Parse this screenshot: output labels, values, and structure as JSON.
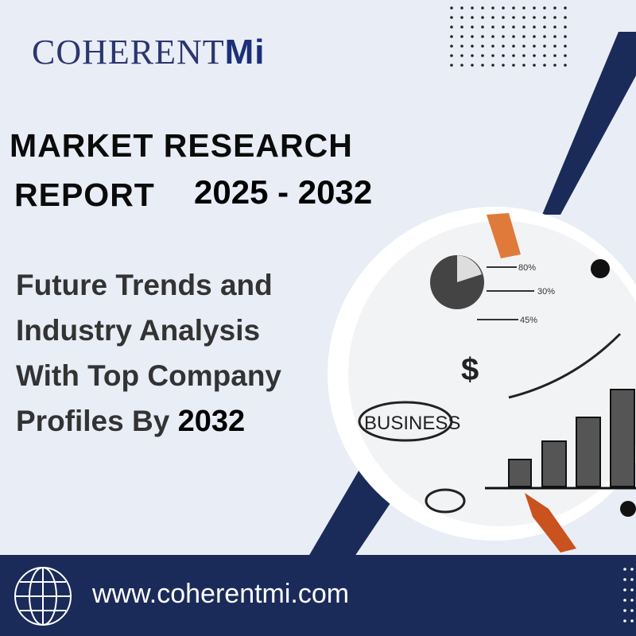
{
  "brand": {
    "name_prefix": "COHERENT",
    "name_suffix": "Mi",
    "url": "www.coherentmi.com"
  },
  "headline": {
    "line1": "MARKET RESEARCH",
    "line2": "REPORT",
    "years": "2025 - 2032"
  },
  "subtitle": {
    "line1": "Future Trends and",
    "line2": "Industry Analysis",
    "line3": "With Top Company",
    "line4_prefix": "Profiles By",
    "line4_year": "2032"
  },
  "illustration": {
    "word": "BUSINESS",
    "labels": [
      "80%",
      "30%",
      "45%",
      "$"
    ]
  },
  "icons": {
    "footer": "globe-icon"
  },
  "colors": {
    "background": "#e9edf6",
    "navy": "#1a2b5a",
    "text": "#0b0b0b"
  }
}
